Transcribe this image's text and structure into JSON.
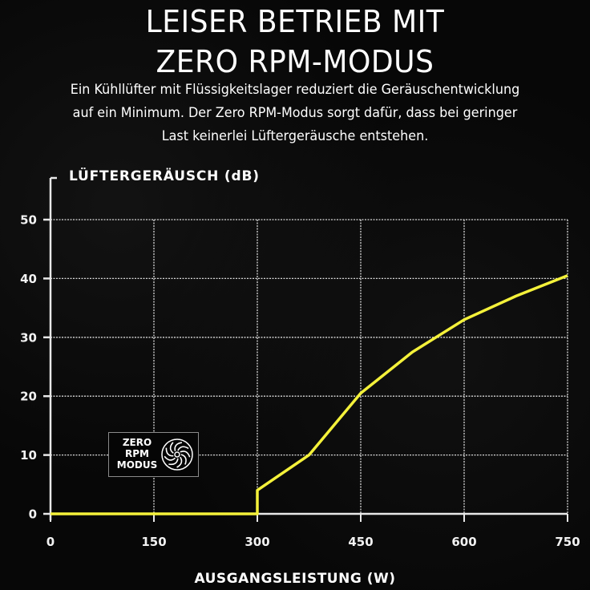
{
  "header": {
    "title_line1": "LEISER BETRIEB MIT",
    "title_line2": "ZERO RPM-MODUS",
    "description_lines": [
      "Ein Kühllüfter mit Flüssigkeitslager reduziert die Geräuschentwicklung",
      "auf ein Minimum. Der Zero RPM-Modus sorgt dafür, dass bei geringer",
      "Last keinerlei Lüftergeräusche entstehen."
    ]
  },
  "badge": {
    "lines": [
      "ZERO",
      "RPM",
      "MODUS"
    ],
    "icon": "fan-icon"
  },
  "colors": {
    "background": "#050505",
    "line": "#f4f13a",
    "grid": "#d8d8d8",
    "text": "#ffffff"
  },
  "chart_data": {
    "type": "line",
    "title": "LEISER BETRIEB MIT ZERO RPM-MODUS",
    "xlabel": "AUSGANGSLEISTUNG (W)",
    "ylabel": "LÜFTERGERÄUSCH (dB)",
    "x_ticks": [
      0,
      150,
      300,
      450,
      600,
      750
    ],
    "y_ticks": [
      0,
      10,
      20,
      30,
      40,
      50
    ],
    "xlim": [
      0,
      750
    ],
    "ylim": [
      0,
      50
    ],
    "grid": true,
    "legend": null,
    "annotations": [
      "ZERO RPM MODUS"
    ],
    "series": [
      {
        "name": "Lüftergeräusch",
        "color": "#f4f13a",
        "x": [
          0,
          300,
          300,
          375,
          450,
          525,
          600,
          675,
          750
        ],
        "y": [
          0,
          0,
          4,
          10,
          20.5,
          27.5,
          33,
          37,
          40.5
        ]
      }
    ]
  }
}
